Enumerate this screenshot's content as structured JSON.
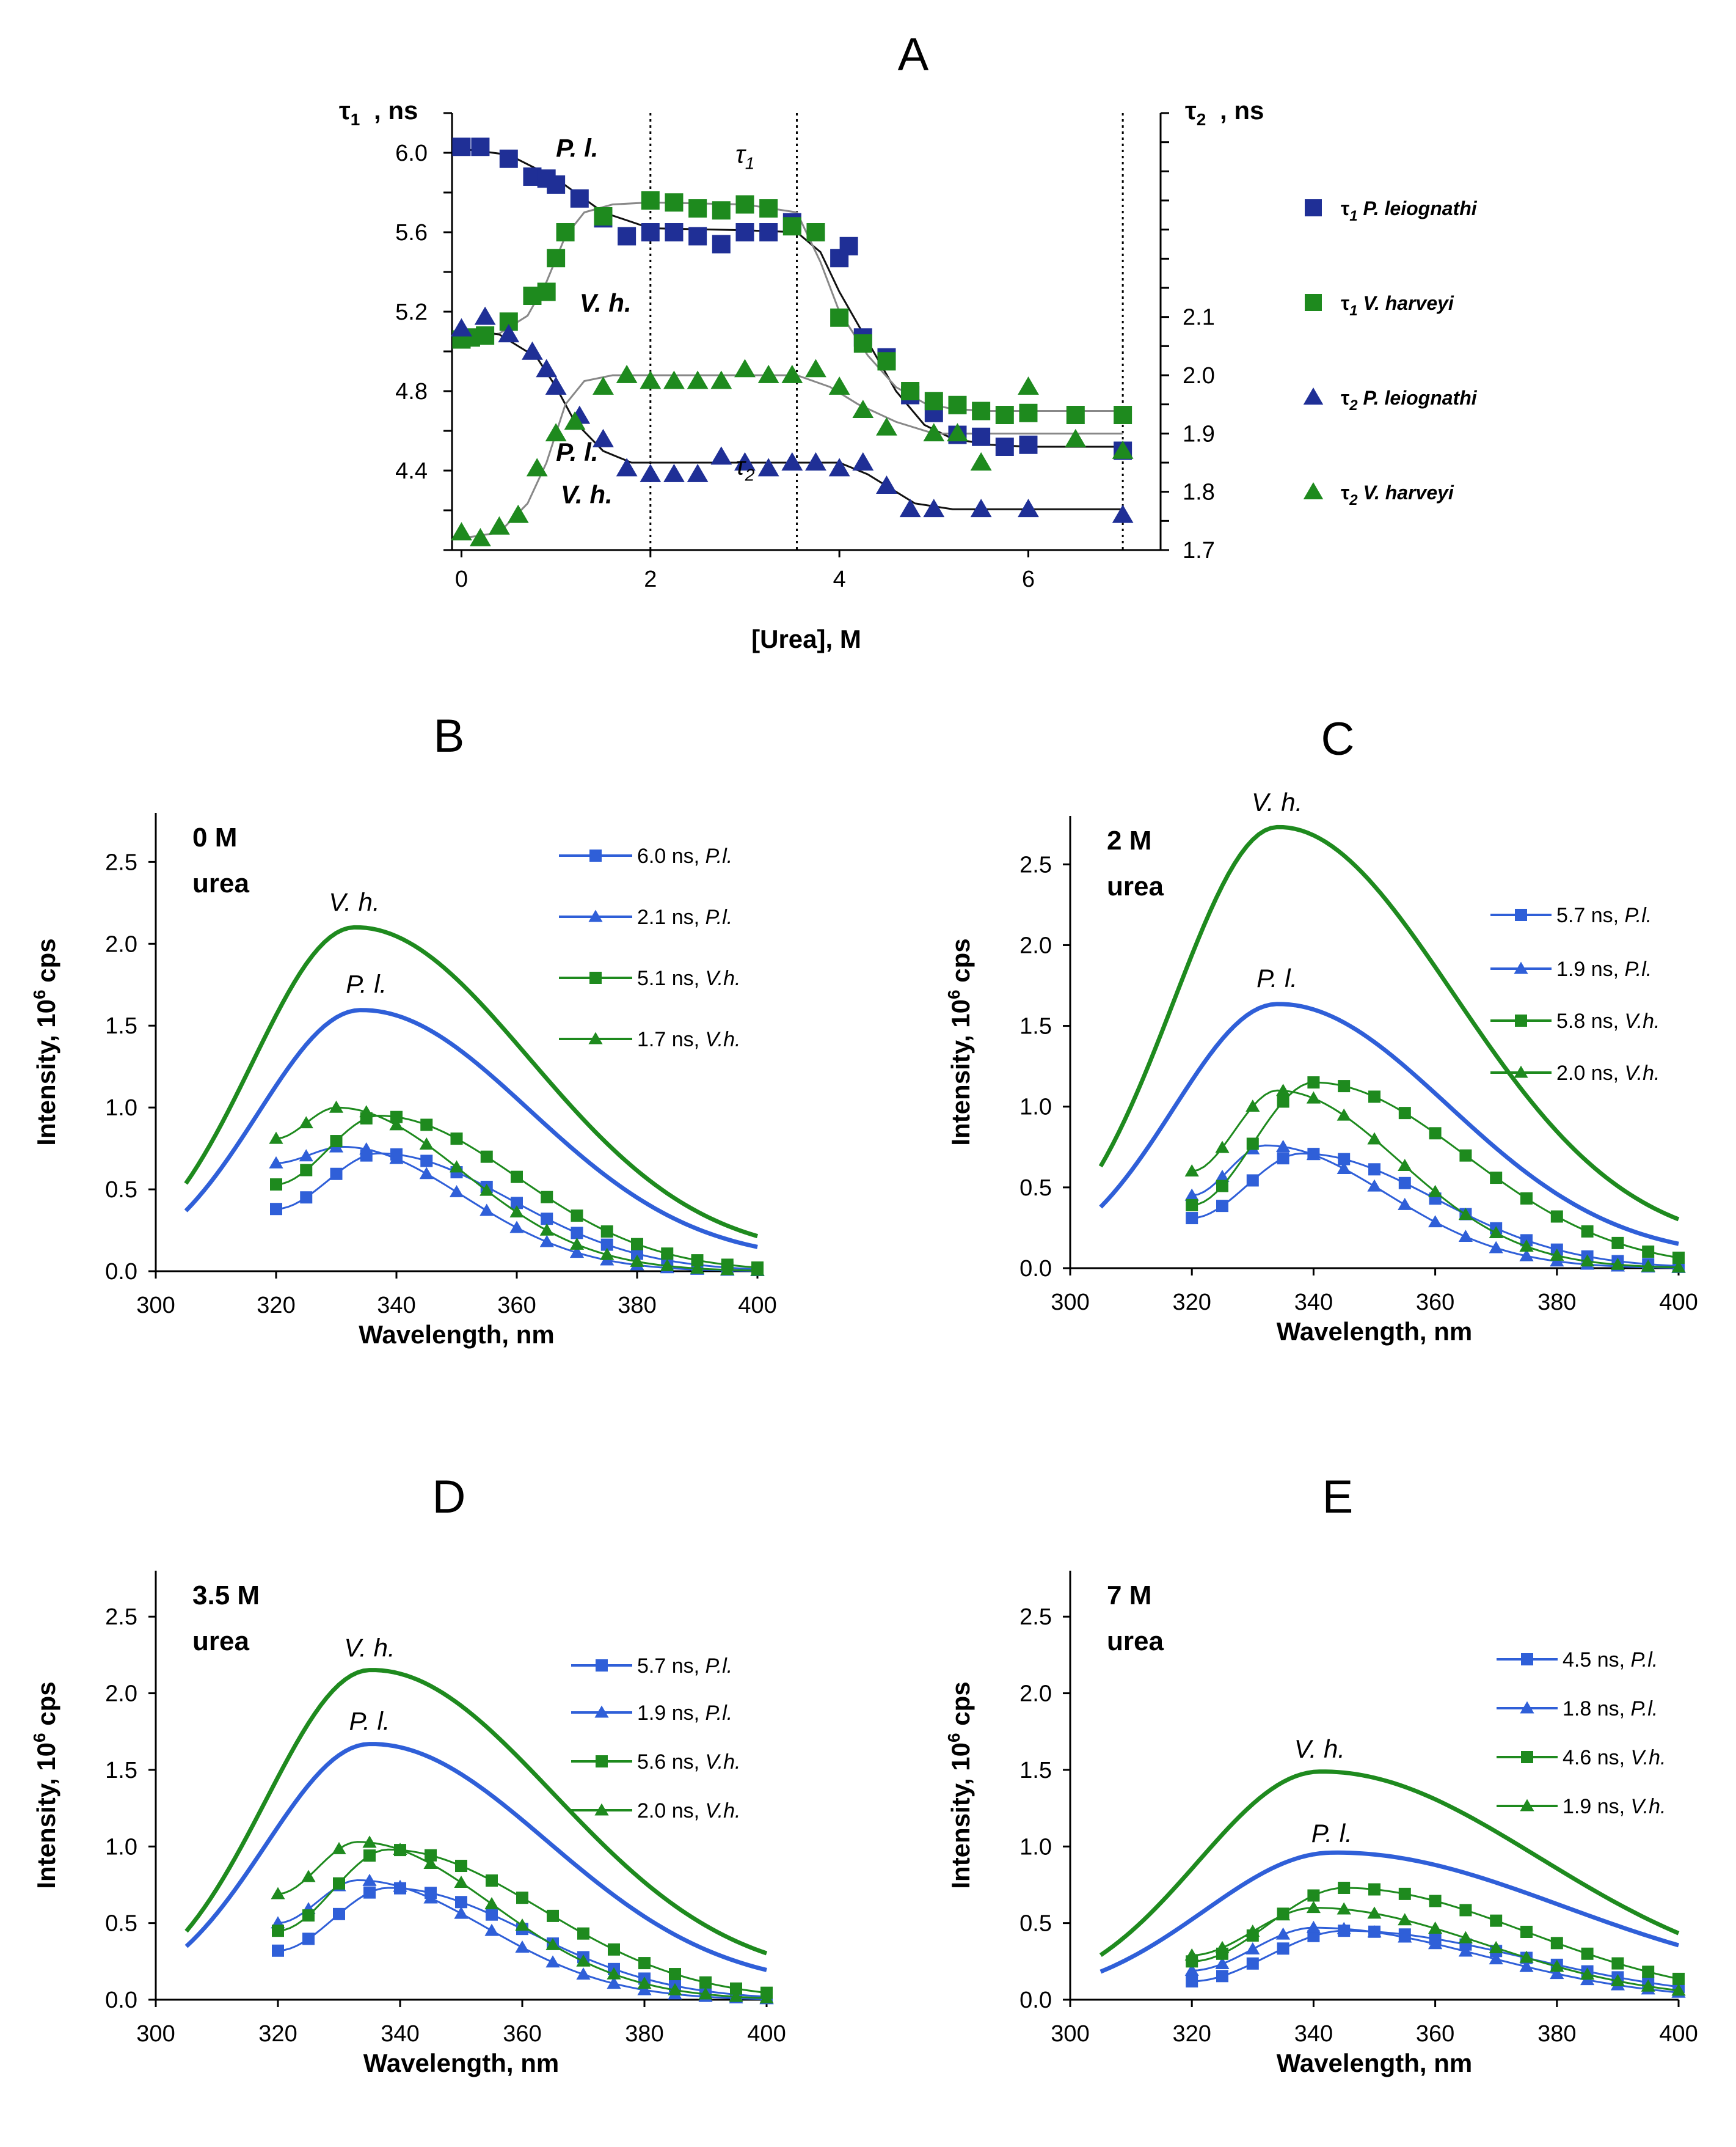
{
  "colors": {
    "blue": "#1f2f96",
    "green": "#1e8a1e",
    "blueLine": "#2f5fd8",
    "greenLine": "#1e8a1e",
    "fitBlack": "#111111",
    "fitGray": "#888888"
  },
  "chart_data": [
    {
      "id": "A",
      "type": "scatter",
      "panel_label": "A",
      "xlabel": "[Urea], M",
      "ylabel_left": "τ1, ns",
      "ylabel_right": "τ2, ns",
      "xlim": [
        -0.1,
        7.4
      ],
      "ylim_left": [
        4.0,
        6.2
      ],
      "ylim_right": [
        1.7,
        2.45
      ],
      "xticks": [
        0,
        2,
        4,
        6
      ],
      "yticks_left": [
        4.4,
        4.8,
        5.2,
        5.6,
        6.0
      ],
      "yticks_left_labels": [
        "4.4",
        "4.8",
        "5.2",
        "5.6",
        "6.0"
      ],
      "yticks_right": [
        1.7,
        1.8,
        1.9,
        2.0,
        2.1
      ],
      "yticks_right_labels": [
        "1.7",
        "1.8",
        "1.9",
        "2.0",
        "2.1"
      ],
      "vlines": [
        2.0,
        3.55,
        7.0
      ],
      "annotations": [
        {
          "text": "P. l.",
          "x": 1.0,
          "y": 5.98,
          "axis": "left",
          "style": "bold-italic"
        },
        {
          "text": "V. h.",
          "x": 1.25,
          "y": 5.2,
          "axis": "left",
          "style": "bold-italic"
        },
        {
          "text": "P. l.",
          "x": 1.0,
          "y": 4.45,
          "axis": "left",
          "style": "bold-italic"
        },
        {
          "text": "V. h.",
          "x": 1.05,
          "y": 1.78,
          "axis": "right",
          "style": "bold-italic"
        },
        {
          "text": "τ1",
          "x": 2.9,
          "y": 5.95,
          "axis": "left",
          "style": "normal"
        },
        {
          "text": "τ2",
          "x": 2.9,
          "y": 4.38,
          "axis": "left",
          "style": "normal"
        }
      ],
      "series": [
        {
          "name": "τ1 P. leiognathi",
          "legend_sub": "1",
          "legend_species": "P. leiognathi",
          "marker": "square",
          "color": "blue",
          "axis": "left",
          "x": [
            0,
            0.2,
            0.5,
            0.75,
            0.9,
            1.0,
            1.25,
            1.5,
            1.75,
            2.0,
            2.25,
            2.5,
            2.75,
            3.0,
            3.25,
            3.5,
            3.75,
            4.0,
            4.1,
            4.25,
            4.5,
            4.75,
            5.0,
            5.25,
            5.5,
            5.75,
            6.0,
            7.0
          ],
          "y": [
            6.03,
            6.03,
            5.97,
            5.88,
            5.87,
            5.84,
            5.77,
            5.67,
            5.58,
            5.6,
            5.6,
            5.58,
            5.54,
            5.6,
            5.6,
            5.65,
            5.6,
            5.47,
            5.53,
            5.07,
            4.97,
            4.78,
            4.69,
            4.58,
            4.57,
            4.52,
            4.53,
            4.5
          ]
        },
        {
          "name": "τ1 V. harveyi",
          "legend_sub": "1",
          "legend_species": "V. harveyi",
          "marker": "square",
          "color": "green",
          "axis": "left",
          "x": [
            0,
            0.1,
            0.25,
            0.5,
            0.75,
            0.9,
            1.0,
            1.1,
            1.5,
            2.0,
            2.25,
            2.5,
            2.75,
            3.0,
            3.25,
            3.5,
            3.75,
            4.0,
            4.25,
            4.5,
            4.75,
            5.0,
            5.25,
            5.5,
            5.75,
            6.0,
            6.5,
            7.0
          ],
          "y": [
            5.06,
            5.07,
            5.08,
            5.15,
            5.28,
            5.3,
            5.47,
            5.6,
            5.68,
            5.76,
            5.75,
            5.72,
            5.71,
            5.74,
            5.72,
            5.63,
            5.6,
            5.17,
            5.04,
            4.95,
            4.8,
            4.75,
            4.73,
            4.7,
            4.68,
            4.69,
            4.68,
            4.68
          ]
        },
        {
          "name": "τ2 P. leiognathi",
          "legend_sub": "2",
          "legend_species": "P. leiognathi",
          "marker": "triangle",
          "color": "blue",
          "axis": "right",
          "x": [
            0,
            0.25,
            0.5,
            0.75,
            0.9,
            1.0,
            1.25,
            1.5,
            1.75,
            2.0,
            2.25,
            2.5,
            2.75,
            3.0,
            3.25,
            3.5,
            3.75,
            4.0,
            4.25,
            4.5,
            4.75,
            5.0,
            5.5,
            6.0,
            7.0
          ],
          "y": [
            2.08,
            2.1,
            2.07,
            2.04,
            2.01,
            1.98,
            1.93,
            1.89,
            1.84,
            1.83,
            1.83,
            1.83,
            1.86,
            1.85,
            1.84,
            1.85,
            1.85,
            1.84,
            1.85,
            1.81,
            1.77,
            1.77,
            1.77,
            1.77,
            1.76
          ]
        },
        {
          "name": "τ2 V. harveyi",
          "legend_sub": "2",
          "legend_species": "V. harveyi",
          "marker": "triangle",
          "color": "green",
          "axis": "right",
          "x": [
            0,
            0.2,
            0.4,
            0.6,
            0.8,
            1.0,
            1.2,
            1.5,
            1.75,
            2.0,
            2.25,
            2.5,
            2.75,
            3.0,
            3.25,
            3.5,
            3.75,
            4.0,
            4.25,
            4.5,
            5.0,
            5.25,
            5.5,
            6.0,
            6.5,
            7.0
          ],
          "y": [
            1.73,
            1.72,
            1.74,
            1.76,
            1.84,
            1.9,
            1.92,
            1.98,
            2.0,
            1.99,
            1.99,
            1.99,
            1.99,
            2.01,
            2.0,
            2.0,
            2.01,
            1.98,
            1.94,
            1.91,
            1.9,
            1.9,
            1.85,
            1.98,
            1.89,
            1.87
          ]
        }
      ],
      "fits": [
        {
          "axis": "left",
          "color": "fitBlack",
          "x": [
            0,
            0.5,
            1.0,
            1.5,
            2.0,
            3.0,
            3.55,
            3.8,
            4.0,
            4.3,
            4.6,
            4.9,
            5.2,
            5.6,
            6.0,
            7.0
          ],
          "y": [
            6.02,
            5.99,
            5.87,
            5.7,
            5.62,
            5.61,
            5.6,
            5.5,
            5.3,
            5.05,
            4.8,
            4.63,
            4.56,
            4.53,
            4.52,
            4.52
          ]
        },
        {
          "axis": "left",
          "color": "fitGray",
          "x": [
            0,
            0.4,
            0.7,
            0.9,
            1.1,
            1.3,
            1.6,
            2.0,
            3.0,
            3.55,
            3.8,
            4.0,
            4.3,
            4.6,
            4.9,
            5.2,
            5.6,
            6.0,
            7.0
          ],
          "y": [
            5.06,
            5.09,
            5.18,
            5.35,
            5.58,
            5.7,
            5.74,
            5.75,
            5.74,
            5.7,
            5.45,
            5.2,
            4.98,
            4.82,
            4.74,
            4.71,
            4.7,
            4.7,
            4.7
          ]
        },
        {
          "axis": "right",
          "color": "fitBlack",
          "x": [
            0,
            0.4,
            0.8,
            1.0,
            1.2,
            1.5,
            1.8,
            2.0,
            3.0,
            4.0,
            4.3,
            4.6,
            4.8,
            5.2,
            6.0,
            7.0
          ],
          "y": [
            2.08,
            2.07,
            2.03,
            1.98,
            1.92,
            1.87,
            1.85,
            1.85,
            1.85,
            1.85,
            1.83,
            1.8,
            1.78,
            1.77,
            1.77,
            1.77
          ]
        },
        {
          "axis": "right",
          "color": "fitGray",
          "x": [
            0,
            0.4,
            0.7,
            0.9,
            1.1,
            1.3,
            1.6,
            2.0,
            3.0,
            3.55,
            3.9,
            4.2,
            4.6,
            5.0,
            6.0,
            7.0
          ],
          "y": [
            1.72,
            1.73,
            1.78,
            1.85,
            1.95,
            1.99,
            2.0,
            2.0,
            2.0,
            2.0,
            1.98,
            1.95,
            1.92,
            1.9,
            1.9,
            1.9
          ]
        }
      ]
    },
    {
      "id": "B",
      "type": "line",
      "panel_label": "B",
      "condition_line1": "0 M",
      "condition_line2": "urea",
      "xlabel": "Wavelength, nm",
      "ylabel_main": "Intensity, 10",
      "ylabel_sup": "6",
      "ylabel_tail": "cps",
      "xlim": [
        300,
        400
      ],
      "ylim": [
        0,
        2.8
      ],
      "xticks": [
        300,
        320,
        340,
        360,
        380,
        400
      ],
      "yticks": [
        0.0,
        0.5,
        1.0,
        1.5,
        2.0,
        2.5
      ],
      "ytick_labels": [
        "0.0",
        "0.5",
        "1.0",
        "1.5",
        "2.0",
        "2.5"
      ],
      "labels": [
        {
          "text": "V. h.",
          "x": 333,
          "y": 2.2
        },
        {
          "text": "P. l.",
          "x": 335,
          "y": 1.7
        }
      ],
      "total": [
        {
          "name": "V. h. total",
          "color": "greenLine",
          "peak": 2.08,
          "center": 333,
          "sl": 17,
          "sr": 29,
          "base_l": 0.0,
          "base_r": 0.07
        },
        {
          "name": "P. l. total",
          "color": "blueLine",
          "peak": 1.58,
          "center": 334,
          "sl": 17,
          "sr": 28,
          "base_l": 0.0,
          "base_r": 0.05
        }
      ],
      "components": [
        {
          "label": "6.0 ns, ",
          "species": "P.l.",
          "marker": "square",
          "color": "blueLine",
          "peak": 0.72,
          "center": 337,
          "sl": 12,
          "sr": 22,
          "start": 0.38
        },
        {
          "label": "2.1 ns, ",
          "species": "P.l.",
          "marker": "triangle",
          "color": "blueLine",
          "peak": 0.76,
          "center": 331,
          "sl": 10,
          "sr": 20,
          "start": 0.66
        },
        {
          "label": "5.1 ns, ",
          "species": "V.h.",
          "marker": "square",
          "color": "greenLine",
          "peak": 0.95,
          "center": 337,
          "sl": 12,
          "sr": 23,
          "start": 0.53
        },
        {
          "label": "1.7 ns, ",
          "species": "V.h.",
          "marker": "triangle",
          "color": "greenLine",
          "peak": 1.0,
          "center": 330,
          "sl": 10,
          "sr": 21,
          "start": 0.81
        }
      ]
    },
    {
      "id": "C",
      "type": "line",
      "panel_label": "C",
      "condition_line1": "2 M",
      "condition_line2": "urea",
      "xlabel": "Wavelength, nm",
      "ylabel_main": "Intensity, 10",
      "ylabel_sup": "6",
      "ylabel_tail": "cps",
      "xlim": [
        300,
        400
      ],
      "ylim": [
        0,
        2.8
      ],
      "xticks": [
        300,
        320,
        340,
        360,
        380,
        400
      ],
      "yticks": [
        0.0,
        0.5,
        1.0,
        1.5,
        2.0,
        2.5
      ],
      "ytick_labels": [
        "0.0",
        "0.5",
        "1.0",
        "1.5",
        "2.0",
        "2.5"
      ],
      "labels": [
        {
          "text": "V. h.",
          "x": 334,
          "y": 2.83
        },
        {
          "text": "P. l.",
          "x": 334,
          "y": 1.74
        }
      ],
      "total": [
        {
          "name": "V. h. total",
          "color": "greenLine",
          "peak": 2.7,
          "center": 334,
          "sl": 17,
          "sr": 29,
          "base_l": 0.0,
          "base_r": 0.1
        },
        {
          "name": "P. l. total",
          "color": "blueLine",
          "peak": 1.62,
          "center": 334,
          "sl": 17,
          "sr": 28,
          "base_l": 0.0,
          "base_r": 0.05
        }
      ],
      "components": [
        {
          "label": "5.7 ns, ",
          "species": "P.l.",
          "marker": "square",
          "color": "blueLine",
          "peak": 0.71,
          "center": 338,
          "sl": 12,
          "sr": 22,
          "start": 0.31
        },
        {
          "label": "1.9 ns, ",
          "species": "P.l.",
          "marker": "triangle",
          "color": "blueLine",
          "peak": 0.76,
          "center": 332,
          "sl": 10,
          "sr": 20,
          "start": 0.45
        },
        {
          "label": "5.8 ns, ",
          "species": "V.h.",
          "marker": "square",
          "color": "greenLine",
          "peak": 1.15,
          "center": 340,
          "sl": 12,
          "sr": 25,
          "start": 0.39
        },
        {
          "label": "2.0 ns, ",
          "species": "V.h.",
          "marker": "triangle",
          "color": "greenLine",
          "peak": 1.1,
          "center": 334,
          "sl": 10,
          "sr": 20,
          "start": 0.6
        }
      ]
    },
    {
      "id": "D",
      "type": "line",
      "panel_label": "D",
      "condition_line1": "3.5 M",
      "condition_line2": "urea",
      "xlabel": "Wavelength, nm",
      "ylabel_main": "Intensity, 10",
      "ylabel_sup": "6",
      "ylabel_tail": "cps",
      "xlim": [
        300,
        400
      ],
      "ylim": [
        0,
        2.8
      ],
      "xticks": [
        300,
        320,
        340,
        360,
        380,
        400
      ],
      "yticks": [
        0.0,
        0.5,
        1.0,
        1.5,
        2.0,
        2.5
      ],
      "ytick_labels": [
        "0.0",
        "0.5",
        "1.0",
        "1.5",
        "2.0",
        "2.5"
      ],
      "labels": [
        {
          "text": "V. h.",
          "x": 335,
          "y": 2.24
        },
        {
          "text": "P. l.",
          "x": 335,
          "y": 1.76
        }
      ],
      "total": [
        {
          "name": "V. h. total",
          "color": "greenLine",
          "peak": 2.12,
          "center": 335,
          "sl": 17,
          "sr": 30,
          "base_l": 0.0,
          "base_r": 0.1
        },
        {
          "name": "P. l. total",
          "color": "blueLine",
          "peak": 1.65,
          "center": 335,
          "sl": 17,
          "sr": 29,
          "base_l": 0.0,
          "base_r": 0.06
        }
      ],
      "components": [
        {
          "label": "5.7 ns, ",
          "species": "P.l.",
          "marker": "square",
          "color": "blueLine",
          "peak": 0.73,
          "center": 338,
          "sl": 12,
          "sr": 23,
          "start": 0.32
        },
        {
          "label": "1.9 ns, ",
          "species": "P.l.",
          "marker": "triangle",
          "color": "blueLine",
          "peak": 0.78,
          "center": 333,
          "sl": 10,
          "sr": 21,
          "start": 0.5
        },
        {
          "label": "5.6 ns, ",
          "species": "V.h.",
          "marker": "square",
          "color": "greenLine",
          "peak": 0.98,
          "center": 338,
          "sl": 12,
          "sr": 25,
          "start": 0.45
        },
        {
          "label": "2.0 ns, ",
          "species": "V.h.",
          "marker": "triangle",
          "color": "greenLine",
          "peak": 1.03,
          "center": 333,
          "sl": 10,
          "sr": 22,
          "start": 0.69
        }
      ]
    },
    {
      "id": "E",
      "type": "line",
      "panel_label": "E",
      "condition_line1": "7 M",
      "condition_line2": "urea",
      "xlabel": "Wavelength, nm",
      "ylabel_main": "Intensity, 10",
      "ylabel_sup": "6",
      "ylabel_tail": "cps",
      "xlim": [
        300,
        400
      ],
      "ylim": [
        0,
        2.8
      ],
      "xticks": [
        300,
        320,
        340,
        360,
        380,
        400
      ],
      "yticks": [
        0.0,
        0.5,
        1.0,
        1.5,
        2.0,
        2.5
      ],
      "ytick_labels": [
        "0.0",
        "0.5",
        "1.0",
        "1.5",
        "2.0",
        "2.5"
      ],
      "labels": [
        {
          "text": "V. h.",
          "x": 341,
          "y": 1.58
        },
        {
          "text": "P. l.",
          "x": 343,
          "y": 1.03
        }
      ],
      "total": [
        {
          "name": "V. h. total",
          "color": "greenLine",
          "peak": 1.47,
          "center": 341,
          "sl": 20,
          "sr": 36,
          "base_l": 0.0,
          "base_r": 0.05
        },
        {
          "name": "P. l. total",
          "color": "blueLine",
          "peak": 0.94,
          "center": 343,
          "sl": 21,
          "sr": 38,
          "base_l": 0.0,
          "base_r": 0.05
        }
      ],
      "components": [
        {
          "label": "4.5 ns, ",
          "species": "P.l.",
          "marker": "square",
          "color": "blueLine",
          "peak": 0.45,
          "center": 345,
          "sl": 14,
          "sr": 30,
          "start": 0.12
        },
        {
          "label": "1.8 ns, ",
          "species": "P.l.",
          "marker": "triangle",
          "color": "blueLine",
          "peak": 0.47,
          "center": 340,
          "sl": 12,
          "sr": 28,
          "start": 0.19
        },
        {
          "label": "4.6 ns, ",
          "species": "V.h.",
          "marker": "square",
          "color": "greenLine",
          "peak": 0.73,
          "center": 345,
          "sl": 14,
          "sr": 30,
          "start": 0.25
        },
        {
          "label": "1.9 ns, ",
          "species": "V.h.",
          "marker": "triangle",
          "color": "greenLine",
          "peak": 0.6,
          "center": 340,
          "sl": 12,
          "sr": 28,
          "start": 0.29
        }
      ]
    }
  ]
}
